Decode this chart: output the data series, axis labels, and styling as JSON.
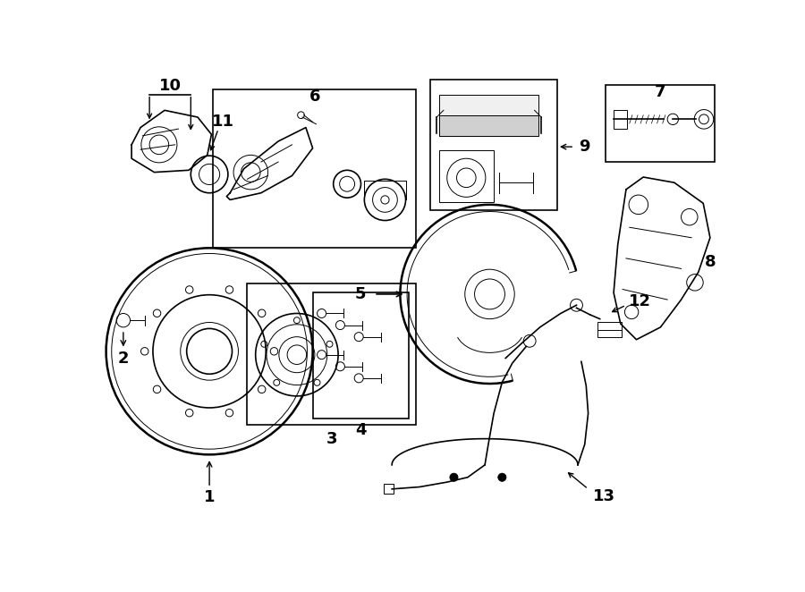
{
  "background_color": "#ffffff",
  "line_color": "#000000",
  "fig_width": 9.0,
  "fig_height": 6.62,
  "lw_thin": 0.7,
  "lw_med": 1.2,
  "lw_thick": 1.8
}
